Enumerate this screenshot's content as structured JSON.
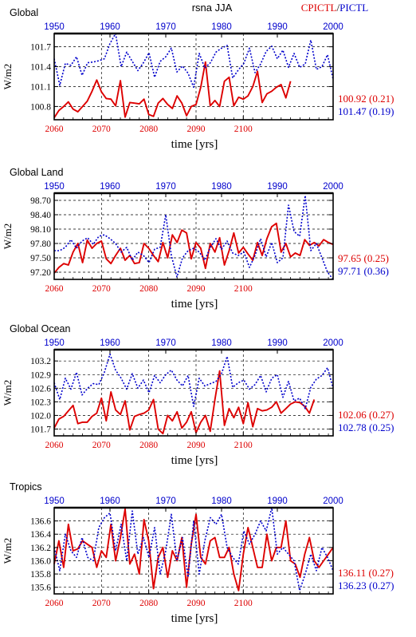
{
  "figure": {
    "center_title": "rsna  JJA",
    "legend_red": "CPICTL",
    "legend_sep": "/",
    "legend_blue": "PICTL",
    "colors": {
      "red": "#dd0000",
      "blue": "#0000cc",
      "black": "#000000"
    }
  },
  "chart_data": [
    {
      "type": "line",
      "title": "Global",
      "ylabel": "W/m2",
      "xlabel": "time [yrs]",
      "x_bottom": {
        "range": [
          2060,
          2119
        ],
        "ticks": [
          2060,
          2070,
          2080,
          2090,
          2100
        ],
        "tick_labels": [
          "2060",
          "2070",
          "2080",
          "2090",
          "2100"
        ]
      },
      "x_top": {
        "range": [
          1950,
          2000
        ],
        "ticks": [
          1950,
          1960,
          1970,
          1980,
          1990,
          2000
        ],
        "tick_labels": [
          "1950",
          "1960",
          "1970",
          "1980",
          "1990",
          "2000"
        ]
      },
      "ylim": [
        100.6,
        101.9
      ],
      "yticks": [
        100.8,
        101.1,
        101.4,
        101.7
      ],
      "ytick_labels": [
        "100.8",
        "101.1",
        "101.4",
        "101.7"
      ],
      "series": [
        {
          "name": "CPICTL",
          "axis": "bottom",
          "color": "#dd0000",
          "style": "solid",
          "summary": "100.92 (0.21)",
          "x_start": 2060,
          "values": [
            100.63,
            100.74,
            100.8,
            100.87,
            100.76,
            100.72,
            100.8,
            100.88,
            101.03,
            101.2,
            101.02,
            100.92,
            100.91,
            100.81,
            101.19,
            100.64,
            100.86,
            100.85,
            100.84,
            100.91,
            100.68,
            100.65,
            100.85,
            100.92,
            100.83,
            100.77,
            100.96,
            100.85,
            100.66,
            100.8,
            100.83,
            101.09,
            101.47,
            100.81,
            100.89,
            100.8,
            101.18,
            101.24,
            100.81,
            100.94,
            100.91,
            100.96,
            101.1,
            101.33,
            100.86,
            100.99,
            101.03,
            101.09,
            101.13,
            100.93,
            101.18
          ]
        },
        {
          "name": "PICTL",
          "axis": "top",
          "color": "#0000cc",
          "style": "dotted",
          "summary": "101.47 (0.19)",
          "x_start": 1950,
          "values": [
            101.52,
            101.12,
            101.45,
            101.42,
            101.55,
            101.27,
            101.46,
            101.47,
            101.49,
            101.52,
            101.75,
            101.9,
            101.4,
            101.62,
            101.48,
            101.34,
            101.46,
            101.61,
            101.24,
            101.48,
            101.55,
            101.68,
            101.32,
            101.41,
            101.3,
            101.09,
            101.6,
            101.38,
            101.46,
            101.62,
            101.68,
            101.72,
            101.23,
            101.35,
            101.45,
            101.68,
            101.31,
            101.44,
            101.63,
            101.71,
            101.52,
            101.65,
            101.39,
            101.6,
            101.39,
            101.44,
            101.8,
            101.36,
            101.4,
            101.58,
            101.21
          ]
        }
      ]
    },
    {
      "type": "line",
      "title": "Global Land",
      "ylabel": "W/m2",
      "xlabel": "time [yrs]",
      "x_bottom": {
        "range": [
          2060,
          2119
        ],
        "ticks": [
          2060,
          2070,
          2080,
          2090,
          2100
        ],
        "tick_labels": [
          "2060",
          "2070",
          "2080",
          "2090",
          "2100"
        ]
      },
      "x_top": {
        "range": [
          1950,
          2000
        ],
        "ticks": [
          1950,
          1960,
          1970,
          1980,
          1990,
          2000
        ],
        "tick_labels": [
          "1950",
          "1960",
          "1970",
          "1980",
          "1990",
          "2000"
        ]
      },
      "ylim": [
        97.05,
        98.85
      ],
      "yticks": [
        97.2,
        97.5,
        97.8,
        98.1,
        98.4,
        98.7
      ],
      "ytick_labels": [
        "97.20",
        "97.50",
        "97.80",
        "98.10",
        "98.40",
        "98.70"
      ],
      "series": [
        {
          "name": "CPICTL",
          "axis": "bottom",
          "color": "#dd0000",
          "style": "solid",
          "summary": "97.65 (0.25)",
          "x_start": 2060,
          "values": [
            97.18,
            97.3,
            97.38,
            97.35,
            97.62,
            97.8,
            97.4,
            97.87,
            97.7,
            97.8,
            97.85,
            97.48,
            97.38,
            97.55,
            97.7,
            97.45,
            97.55,
            97.38,
            97.4,
            97.8,
            97.7,
            97.55,
            97.42,
            97.82,
            97.5,
            97.98,
            97.82,
            98.08,
            98.02,
            97.48,
            97.82,
            97.7,
            97.28,
            97.8,
            97.62,
            97.92,
            97.35,
            97.65,
            98.02,
            97.6,
            97.72,
            97.58,
            97.45,
            97.82,
            97.55,
            97.9,
            98.15,
            98.22,
            97.62,
            97.8,
            97.52,
            97.6,
            97.55,
            97.88,
            97.76,
            97.82,
            97.75,
            97.88,
            97.82,
            97.78
          ]
        },
        {
          "name": "PICTL",
          "axis": "top",
          "color": "#0000cc",
          "style": "dotted",
          "summary": "97.71 (0.36)",
          "x_start": 1950,
          "values": [
            97.65,
            97.65,
            97.72,
            97.88,
            97.7,
            97.85,
            97.92,
            97.78,
            97.95,
            97.98,
            97.9,
            97.8,
            97.62,
            97.72,
            97.45,
            97.62,
            97.55,
            97.4,
            97.68,
            97.72,
            98.4,
            97.55,
            97.1,
            97.5,
            97.65,
            97.7,
            97.62,
            97.45,
            97.72,
            97.9,
            97.68,
            97.85,
            97.6,
            97.55,
            97.62,
            97.3,
            97.55,
            97.9,
            97.52,
            97.82,
            97.4,
            97.5,
            98.6,
            98.05,
            97.95,
            98.8,
            97.65,
            97.8,
            97.5,
            97.2,
            97.05
          ]
        }
      ]
    },
    {
      "type": "line",
      "title": "Global Ocean",
      "ylabel": "W/m2",
      "xlabel": "time [yrs]",
      "x_bottom": {
        "range": [
          2060,
          2119
        ],
        "ticks": [
          2060,
          2070,
          2080,
          2090,
          2100
        ],
        "tick_labels": [
          "2060",
          "2070",
          "2080",
          "2090",
          "2100"
        ]
      },
      "x_top": {
        "range": [
          1950,
          2000
        ],
        "ticks": [
          1950,
          1960,
          1970,
          1980,
          1990,
          2000
        ],
        "tick_labels": [
          "1950",
          "1960",
          "1970",
          "1980",
          "1990",
          "2000"
        ]
      },
      "ylim": [
        101.55,
        103.45
      ],
      "yticks": [
        101.7,
        102.0,
        102.3,
        102.6,
        102.9,
        103.2
      ],
      "ytick_labels": [
        "101.7",
        "102.0",
        "102.3",
        "102.6",
        "102.9",
        "103.2"
      ],
      "series": [
        {
          "name": "CPICTL",
          "axis": "bottom",
          "color": "#dd0000",
          "style": "solid",
          "summary": "102.06 (0.27)",
          "x_start": 2060,
          "values": [
            101.72,
            101.92,
            101.98,
            102.1,
            102.22,
            101.82,
            101.85,
            101.85,
            101.98,
            102.05,
            102.38,
            101.88,
            102.52,
            102.12,
            102.02,
            102.32,
            101.68,
            101.98,
            102.02,
            102.05,
            102.12,
            102.35,
            101.7,
            101.6,
            102.0,
            101.88,
            102.08,
            101.72,
            101.85,
            102.08,
            101.62,
            101.85,
            102.0,
            101.65,
            102.35,
            102.98,
            101.78,
            102.15,
            101.95,
            102.18,
            101.82,
            102.28,
            101.75,
            102.15,
            102.1,
            102.12,
            102.18,
            102.3,
            102.05,
            102.15,
            102.25,
            102.3,
            102.28,
            102.2,
            102.05,
            102.35
          ]
        },
        {
          "name": "PICTL",
          "axis": "top",
          "color": "#0000cc",
          "style": "dotted",
          "summary": "102.78 (0.25)",
          "x_start": 1950,
          "values": [
            102.72,
            102.35,
            102.82,
            102.58,
            102.95,
            102.45,
            102.6,
            102.7,
            102.68,
            102.95,
            103.35,
            103.0,
            102.82,
            102.58,
            102.92,
            102.6,
            102.78,
            102.5,
            102.88,
            102.72,
            102.9,
            103.0,
            102.78,
            102.65,
            102.88,
            102.2,
            102.82,
            102.65,
            102.7,
            102.75,
            102.92,
            103.3,
            102.62,
            102.72,
            102.78,
            102.58,
            102.68,
            102.88,
            102.52,
            102.82,
            102.9,
            102.4,
            102.75,
            102.32,
            102.38,
            102.15,
            102.62,
            102.8,
            102.88,
            103.05,
            102.6
          ]
        }
      ]
    },
    {
      "type": "line",
      "title": "Tropics",
      "ylabel": "W/m2",
      "xlabel": "time [yrs]",
      "x_bottom": {
        "range": [
          2060,
          2119
        ],
        "ticks": [
          2060,
          2070,
          2080,
          2090,
          2100
        ],
        "tick_labels": [
          "2060",
          "2070",
          "2080",
          "2090",
          "2100"
        ]
      },
      "x_top": {
        "range": [
          1950,
          2000
        ],
        "ticks": [
          1950,
          1960,
          1970,
          1980,
          1990,
          2000
        ],
        "tick_labels": [
          "1950",
          "1960",
          "1970",
          "1980",
          "1990",
          "2000"
        ]
      },
      "ylim": [
        135.5,
        136.8
      ],
      "yticks": [
        135.6,
        135.8,
        136.0,
        136.2,
        136.4,
        136.6
      ],
      "ytick_labels": [
        "135.6",
        "135.8",
        "136.0",
        "136.2",
        "136.4",
        "136.6"
      ],
      "series": [
        {
          "name": "CPICTL",
          "axis": "bottom",
          "color": "#dd0000",
          "style": "solid",
          "summary": "136.11 (0.27)",
          "x_start": 2060,
          "values": [
            135.95,
            136.3,
            135.9,
            136.55,
            136.15,
            136.18,
            136.3,
            136.25,
            136.2,
            135.9,
            136.15,
            136.05,
            136.55,
            136.0,
            136.35,
            136.78,
            135.95,
            136.1,
            135.8,
            136.62,
            136.3,
            135.58,
            136.05,
            136.2,
            135.75,
            136.15,
            136.0,
            136.35,
            135.6,
            136.25,
            136.7,
            136.05,
            135.95,
            136.3,
            136.35,
            136.05,
            136.05,
            136.2,
            135.8,
            135.55,
            136.1,
            136.5,
            136.2,
            135.9,
            135.9,
            136.4,
            136.0,
            136.2,
            136.2,
            136.6,
            136.0,
            135.95,
            135.75,
            136.1,
            136.35,
            136.0,
            135.9,
            136.0,
            136.1,
            136.2
          ]
        },
        {
          "name": "PICTL",
          "axis": "top",
          "color": "#0000cc",
          "style": "dotted",
          "summary": "136.23 (0.27)",
          "x_start": 1950,
          "values": [
            136.2,
            135.85,
            136.4,
            136.15,
            136.05,
            136.35,
            136.05,
            136.0,
            136.5,
            136.65,
            136.72,
            136.15,
            136.55,
            136.0,
            136.75,
            136.1,
            136.35,
            136.05,
            136.5,
            135.8,
            136.15,
            136.7,
            136.0,
            136.35,
            135.75,
            136.6,
            135.8,
            136.3,
            136.65,
            136.55,
            136.7,
            136.2,
            136.05,
            135.95,
            136.45,
            136.25,
            136.4,
            136.6,
            136.45,
            136.8,
            136.1,
            136.2,
            136.1,
            136.0,
            135.55,
            135.8,
            136.1,
            135.85,
            136.2,
            136.05,
            135.85
          ]
        }
      ]
    }
  ]
}
